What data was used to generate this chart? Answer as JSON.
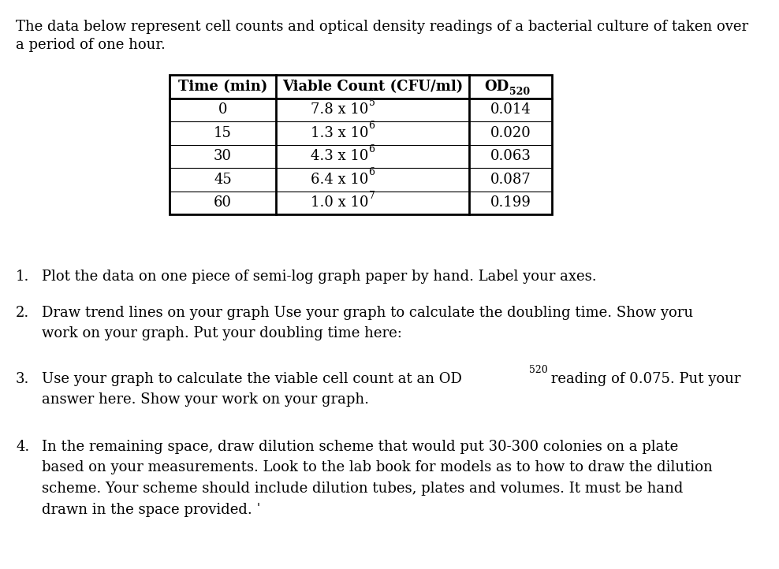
{
  "background_color": "#ffffff",
  "intro_line1": "The data below represent cell counts and optical density readings of a bacterial culture of taken over",
  "intro_line2": "a period of one hour.",
  "table_headers": [
    "Time (min)",
    "Viable Count (CFU/ml)",
    "OD520"
  ],
  "table_rows": [
    [
      "0",
      "7.8 x 10",
      "5",
      "0.014"
    ],
    [
      "15",
      "1.3 x 10",
      "6",
      "0.020"
    ],
    [
      "30",
      "4.3 x 10",
      "6",
      "0.063"
    ],
    [
      "45",
      "6.4 x 10",
      "6",
      "0.087"
    ],
    [
      "60",
      "1.0 x 10",
      "7",
      "0.199"
    ]
  ],
  "q1_num": "1.",
  "q1_text": "Plot the data on one piece of semi-log graph paper by hand. Label your axes.",
  "q2_num": "2.",
  "q2_line1": "Draw trend lines on your graph Use your graph to calculate the doubling time. Show yoru",
  "q2_line2": "work on your graph. Put your doubling time here:",
  "q3_num": "3.",
  "q3_pre": "Use your graph to calculate the viable cell count at an OD",
  "q3_sub": "520",
  "q3_post": " reading of 0.075. Put your",
  "q3_line2": "answer here. Show your work on your graph.",
  "q4_num": "4.",
  "q4_line1": "In the remaining space, draw dilution scheme that would put 30-300 colonies on a plate",
  "q4_line2": "based on your measurements. Look to the lab book for models as to how to draw the dilution",
  "q4_line3": "scheme. Your scheme should include dilution tubes, plates and volumes. It must be hand",
  "q4_line4": "drawn in the space provided. ˈ",
  "text_color": "#000000",
  "font_size": 13,
  "fig_width": 9.88,
  "fig_height": 7.22,
  "dpi": 100
}
